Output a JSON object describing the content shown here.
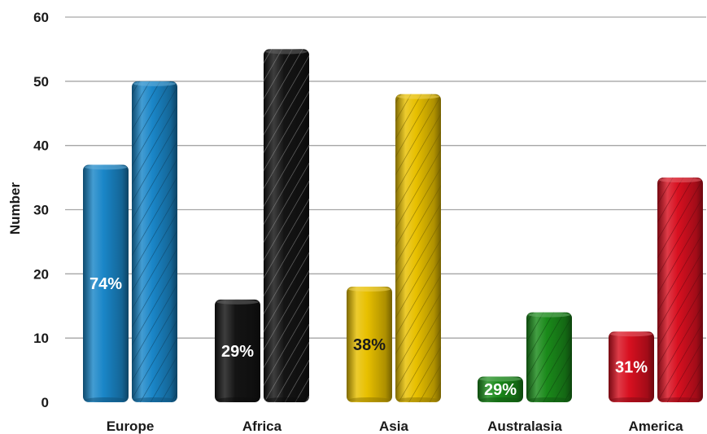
{
  "chart_data": {
    "type": "bar",
    "ylabel": "Number",
    "xlabel": "",
    "ylim": [
      0,
      60
    ],
    "yticks": [
      0,
      10,
      20,
      30,
      40,
      50,
      60
    ],
    "grid": true,
    "categories": [
      "Europe",
      "Africa",
      "Asia",
      "Australasia",
      "America"
    ],
    "colors": [
      "#1a86c8",
      "#141414",
      "#e8c000",
      "#1a8a1a",
      "#d81020"
    ],
    "series": [
      {
        "values": [
          37,
          16,
          18,
          4,
          11
        ],
        "pattern": "solid"
      },
      {
        "values": [
          50,
          55,
          48,
          14,
          35
        ],
        "pattern": "hatched"
      }
    ],
    "data_labels": [
      "74%",
      "29%",
      "38%",
      "29%",
      "31%"
    ],
    "data_label_colors": [
      "#ffffff",
      "#ffffff",
      "#1a1a1a",
      "#ffffff",
      "#ffffff"
    ]
  }
}
